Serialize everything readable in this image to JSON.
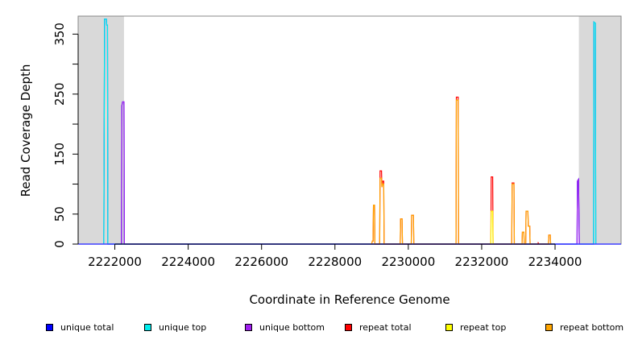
{
  "chart_data": {
    "type": "line",
    "xlabel": "Coordinate in Reference Genome",
    "ylabel": "Read Coverage Depth",
    "xlim": [
      2221000,
      2235800
    ],
    "ylim": [
      0,
      380
    ],
    "xticks": [
      2222000,
      2224000,
      2226000,
      2228000,
      2230000,
      2232000,
      2234000
    ],
    "yticks_labeled": [
      0,
      50,
      150,
      250,
      350
    ],
    "yticks_minor": [
      100,
      200,
      300
    ],
    "shaded_regions": [
      {
        "from": 2221000,
        "to": 2222250
      },
      {
        "from": 2234650,
        "to": 2235800
      }
    ],
    "series": [
      {
        "name": "unique total",
        "color": "#0000ff",
        "points": [
          [
            2221700,
            0
          ],
          [
            2221720,
            375
          ],
          [
            2221770,
            375
          ],
          [
            2221780,
            365
          ],
          [
            2221800,
            365
          ],
          [
            2221810,
            0
          ],
          [
            2222180,
            0
          ],
          [
            2222190,
            230
          ],
          [
            2222210,
            237
          ],
          [
            2222250,
            237
          ],
          [
            2222260,
            0
          ],
          [
            2234600,
            0
          ],
          [
            2234610,
            105
          ],
          [
            2234640,
            108
          ],
          [
            2234660,
            0
          ],
          [
            2235050,
            0
          ],
          [
            2235060,
            370
          ],
          [
            2235100,
            368
          ],
          [
            2235110,
            0
          ]
        ]
      },
      {
        "name": "unique top",
        "color": "#00eeee",
        "points": [
          [
            2221700,
            0
          ],
          [
            2221720,
            375
          ],
          [
            2221770,
            375
          ],
          [
            2221780,
            365
          ],
          [
            2221800,
            365
          ],
          [
            2221810,
            0
          ],
          [
            2235050,
            0
          ],
          [
            2235060,
            370
          ],
          [
            2235100,
            368
          ],
          [
            2235110,
            0
          ]
        ]
      },
      {
        "name": "unique bottom",
        "color": "#a020f0",
        "points": [
          [
            2222180,
            0
          ],
          [
            2222190,
            230
          ],
          [
            2222210,
            237
          ],
          [
            2222250,
            237
          ],
          [
            2222260,
            0
          ],
          [
            2234600,
            0
          ],
          [
            2234610,
            105
          ],
          [
            2234640,
            108
          ],
          [
            2234660,
            0
          ]
        ]
      },
      {
        "name": "repeat total",
        "color": "#ff0000",
        "points": [
          [
            2229000,
            0
          ],
          [
            2229020,
            5
          ],
          [
            2229040,
            5
          ],
          [
            2229050,
            65
          ],
          [
            2229080,
            65
          ],
          [
            2229090,
            0
          ],
          [
            2229220,
            0
          ],
          [
            2229230,
            122
          ],
          [
            2229270,
            122
          ],
          [
            2229280,
            95
          ],
          [
            2229300,
            105
          ],
          [
            2229330,
            105
          ],
          [
            2229340,
            0
          ],
          [
            2229780,
            0
          ],
          [
            2229790,
            42
          ],
          [
            2229830,
            42
          ],
          [
            2229840,
            0
          ],
          [
            2230080,
            0
          ],
          [
            2230090,
            48
          ],
          [
            2230140,
            48
          ],
          [
            2230150,
            0
          ],
          [
            2231300,
            0
          ],
          [
            2231310,
            245
          ],
          [
            2231360,
            245
          ],
          [
            2231370,
            0
          ],
          [
            2232250,
            0
          ],
          [
            2232260,
            112
          ],
          [
            2232300,
            112
          ],
          [
            2232310,
            0
          ],
          [
            2232820,
            0
          ],
          [
            2232830,
            102
          ],
          [
            2232880,
            102
          ],
          [
            2232890,
            0
          ],
          [
            2233100,
            0
          ],
          [
            2233110,
            20
          ],
          [
            2233150,
            20
          ],
          [
            2233160,
            0
          ],
          [
            2233200,
            0
          ],
          [
            2233210,
            55
          ],
          [
            2233260,
            55
          ],
          [
            2233270,
            30
          ],
          [
            2233310,
            30
          ],
          [
            2233320,
            0
          ],
          [
            2233530,
            0
          ],
          [
            2233540,
            2
          ],
          [
            2233560,
            0
          ],
          [
            2233820,
            0
          ],
          [
            2233830,
            15
          ],
          [
            2233870,
            15
          ],
          [
            2233880,
            0
          ]
        ]
      },
      {
        "name": "repeat top",
        "color": "#ffff00",
        "points": [
          [
            2232250,
            0
          ],
          [
            2232260,
            55
          ],
          [
            2232300,
            55
          ],
          [
            2232310,
            0
          ]
        ]
      },
      {
        "name": "repeat bottom",
        "color": "#ffa500",
        "points": [
          [
            2229000,
            0
          ],
          [
            2229020,
            5
          ],
          [
            2229040,
            5
          ],
          [
            2229050,
            65
          ],
          [
            2229080,
            65
          ],
          [
            2229090,
            0
          ],
          [
            2229220,
            0
          ],
          [
            2229230,
            110
          ],
          [
            2229270,
            110
          ],
          [
            2229280,
            95
          ],
          [
            2229300,
            100
          ],
          [
            2229330,
            100
          ],
          [
            2229340,
            0
          ],
          [
            2229780,
            0
          ],
          [
            2229790,
            42
          ],
          [
            2229830,
            42
          ],
          [
            2229840,
            0
          ],
          [
            2230080,
            0
          ],
          [
            2230090,
            48
          ],
          [
            2230140,
            48
          ],
          [
            2230150,
            0
          ],
          [
            2231300,
            0
          ],
          [
            2231310,
            240
          ],
          [
            2231360,
            240
          ],
          [
            2231370,
            0
          ],
          [
            2232820,
            0
          ],
          [
            2232830,
            100
          ],
          [
            2232880,
            100
          ],
          [
            2232890,
            0
          ],
          [
            2233100,
            0
          ],
          [
            2233110,
            20
          ],
          [
            2233150,
            20
          ],
          [
            2233160,
            0
          ],
          [
            2233200,
            0
          ],
          [
            2233210,
            55
          ],
          [
            2233260,
            55
          ],
          [
            2233270,
            30
          ],
          [
            2233310,
            30
          ],
          [
            2233320,
            0
          ],
          [
            2233820,
            0
          ],
          [
            2233830,
            15
          ],
          [
            2233870,
            15
          ],
          [
            2233880,
            0
          ]
        ]
      }
    ],
    "legend_placement": "bottom",
    "legend": [
      {
        "label": "unique total",
        "color": "#0000ff"
      },
      {
        "label": "unique top",
        "color": "#00eeee"
      },
      {
        "label": "unique bottom",
        "color": "#a020f0"
      },
      {
        "label": "repeat total",
        "color": "#ff0000"
      },
      {
        "label": "repeat top",
        "color": "#ffff00"
      },
      {
        "label": "repeat bottom",
        "color": "#ffa500"
      }
    ]
  },
  "colors": {
    "shade": "#d9d9d9",
    "baseline": "#4040ff",
    "axis": "#000000"
  }
}
